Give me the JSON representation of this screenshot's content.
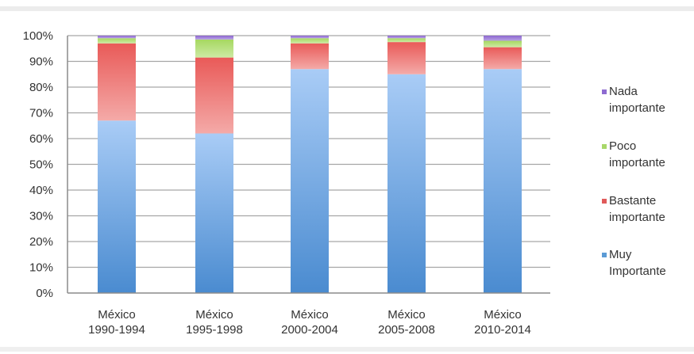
{
  "chart_data": {
    "type": "bar",
    "stacked": true,
    "title": "",
    "xlabel": "",
    "ylabel": "",
    "ylim": [
      0,
      100
    ],
    "y_ticks": [
      "0%",
      "10%",
      "20%",
      "30%",
      "40%",
      "50%",
      "60%",
      "70%",
      "80%",
      "90%",
      "100%"
    ],
    "categories": [
      [
        "México",
        "1990-1994"
      ],
      [
        "México",
        "1995-1998"
      ],
      [
        "México",
        "2000-2004"
      ],
      [
        "México",
        "2005-2008"
      ],
      [
        "México",
        "2010-2014"
      ]
    ],
    "series": [
      {
        "name": [
          "Muy",
          "Importante"
        ],
        "color": "#5b9bd5",
        "values": [
          67,
          62,
          87,
          85,
          87
        ]
      },
      {
        "name": [
          "Bastante",
          "importante"
        ],
        "color": "#e05a5a",
        "values": [
          30,
          29.5,
          10,
          12.5,
          8.5
        ]
      },
      {
        "name": [
          "Poco",
          "importante"
        ],
        "color": "#a8d86a",
        "values": [
          2,
          7,
          2,
          1.5,
          2.5
        ]
      },
      {
        "name": [
          "Nada",
          "importante"
        ],
        "color": "#8e6bd1",
        "values": [
          1,
          1.5,
          1,
          1,
          2
        ]
      }
    ],
    "grid": true,
    "legend_position": "right"
  }
}
